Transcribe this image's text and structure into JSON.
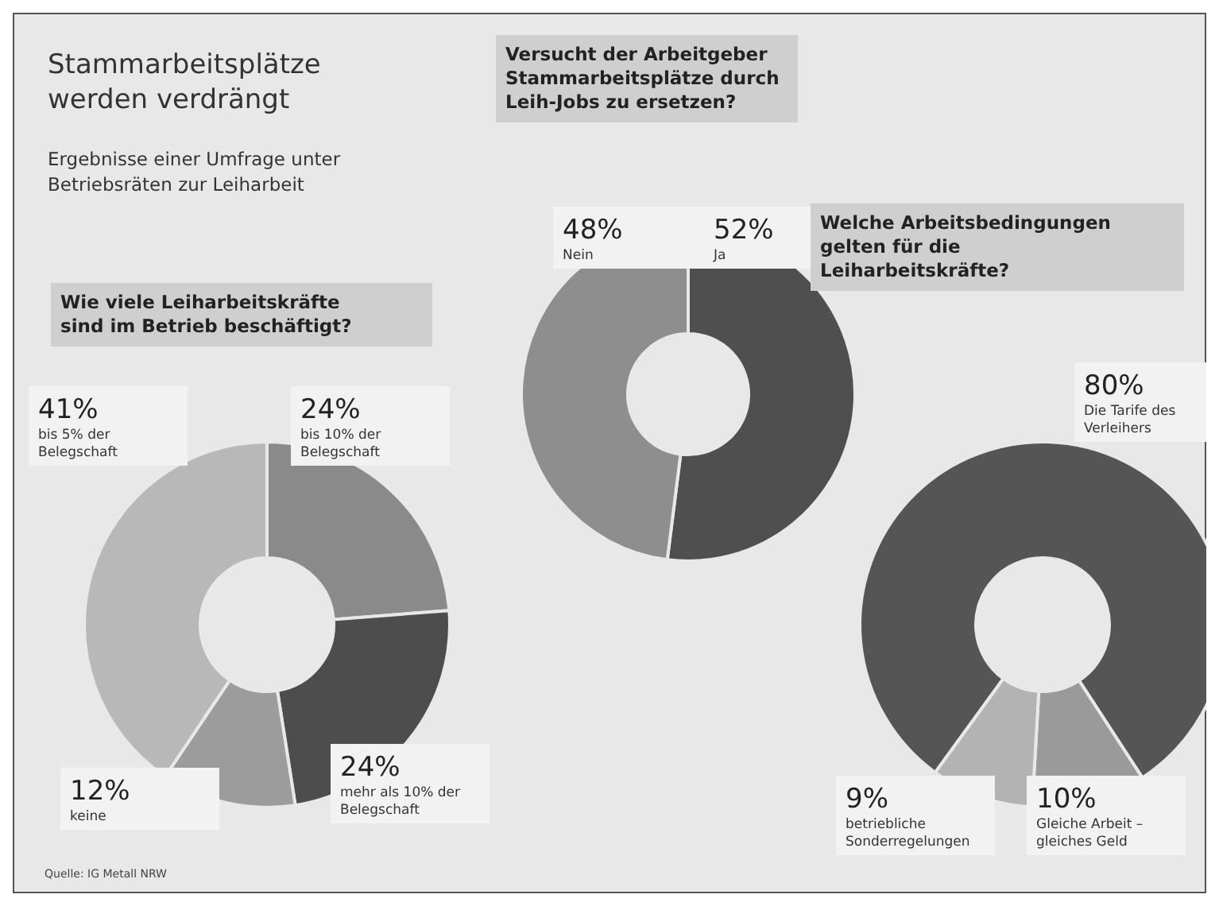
{
  "chart_data": [
    {
      "type": "other",
      "title": "Stammarbeitsplätze werden verdrängt",
      "subtitle": "Ergebnisse einer Umfrage unter Betriebsräten zur Leiharbeit",
      "annotations": [
        "Quelle: IG Metall NRW"
      ]
    },
    {
      "type": "donut",
      "title": "Wie viele Leiharbeitskräfte sind im Betrieb beschäftigt?",
      "categories": [
        "bis 10% der Belegschaft",
        "mehr als 10% der Belegschaft",
        "keine",
        "bis 5% der Belegschaft"
      ],
      "values": [
        24,
        24,
        12,
        41
      ],
      "value_labels": [
        "24%",
        "24%",
        "12%",
        "41%"
      ],
      "colors": [
        "#8a8a8a",
        "#4d4d4d",
        "#9c9c9c",
        "#b8b8b8"
      ]
    },
    {
      "type": "donut",
      "title": "Versucht der Arbeitgeber Stammarbeitsplätze durch Leih-Jobs zu ersetzen?",
      "categories": [
        "Ja",
        "Nein"
      ],
      "values": [
        52,
        48
      ],
      "value_labels": [
        "52%",
        "48%"
      ],
      "colors": [
        "#4f4f4f",
        "#8e8e8e"
      ]
    },
    {
      "type": "donut",
      "title": "Welche Arbeitsbedingungen gelten für die Leiharbeitskräfte?",
      "categories": [
        "Die Tarife des Verleihers",
        "Gleiche Arbeit – gleiches Geld",
        "betriebliche Sonderregelungen"
      ],
      "values": [
        80,
        10,
        9
      ],
      "value_labels": [
        "80%",
        "10%",
        "9%"
      ],
      "colors": [
        "#555555",
        "#9a9a9a",
        "#b3b3b3"
      ]
    }
  ]
}
